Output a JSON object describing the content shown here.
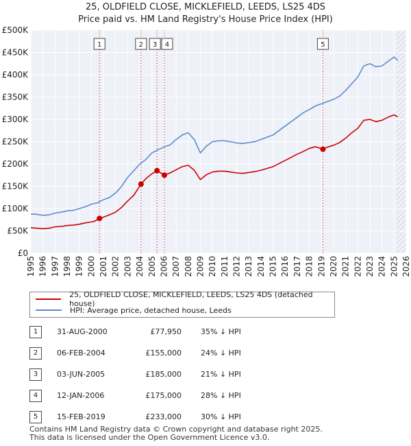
{
  "title_line1": "25, OLDFIELD CLOSE, MICKLEFIELD, LEEDS, LS25 4DS",
  "title_line2": "Price paid vs. HM Land Registry's House Price Index (HPI)",
  "colors": {
    "red": "#cc0000",
    "blue": "#5b8ccc",
    "grid": "#d0d7e4",
    "plot_bg": "#eef1f7",
    "future_hatch": "#bbbbbb"
  },
  "legend": {
    "property": "25, OLDFIELD CLOSE, MICKLEFIELD, LEEDS, LS25 4DS (detached house)",
    "hpi": "HPI: Average price, detached house, Leeds"
  },
  "sales": [
    {
      "num": "1",
      "date": "31-AUG-2000",
      "price": "£77,950",
      "hpi": "35% ↓ HPI"
    },
    {
      "num": "2",
      "date": "06-FEB-2004",
      "price": "£155,000",
      "hpi": "24% ↓ HPI"
    },
    {
      "num": "3",
      "date": "03-JUN-2005",
      "price": "£185,000",
      "hpi": "21% ↓ HPI"
    },
    {
      "num": "4",
      "date": "12-JAN-2006",
      "price": "£175,000",
      "hpi": "28% ↓ HPI"
    },
    {
      "num": "5",
      "date": "15-FEB-2019",
      "price": "£233,000",
      "hpi": "30% ↓ HPI"
    }
  ],
  "footer_line1": "Contains HM Land Registry data © Crown copyright and database right 2025.",
  "footer_line2": "This data is licensed under the Open Government Licence v3.0.",
  "chart_data": {
    "type": "line",
    "title": "25, OLDFIELD CLOSE, MICKLEFIELD, LEEDS, LS25 4DS — Price paid vs. HM Land Registry's House Price Index (HPI)",
    "xlabel": "",
    "ylabel": "",
    "xlim": [
      1995,
      2026
    ],
    "ylim": [
      0,
      500000
    ],
    "y_ticks": [
      0,
      50000,
      100000,
      150000,
      200000,
      250000,
      300000,
      350000,
      400000,
      450000,
      500000
    ],
    "y_tick_labels": [
      "£0",
      "£50K",
      "£100K",
      "£150K",
      "£200K",
      "£250K",
      "£300K",
      "£350K",
      "£400K",
      "£450K",
      "£500K"
    ],
    "x_ticks": [
      1995,
      1996,
      1997,
      1998,
      1999,
      2000,
      2001,
      2002,
      2003,
      2004,
      2005,
      2006,
      2007,
      2008,
      2009,
      2010,
      2011,
      2012,
      2013,
      2014,
      2015,
      2016,
      2017,
      2018,
      2019,
      2020,
      2021,
      2022,
      2023,
      2024,
      2025,
      2026
    ],
    "grid": true,
    "future_hatch_from": 2025.2,
    "series": [
      {
        "name": "HPI: Average price, detached house, Leeds",
        "color": "#5b8ccc",
        "x": [
          1995,
          1995.5,
          1996,
          1996.5,
          1997,
          1997.5,
          1998,
          1998.5,
          1999,
          1999.5,
          2000,
          2000.5,
          2001,
          2001.5,
          2002,
          2002.5,
          2003,
          2003.5,
          2004,
          2004.5,
          2005,
          2005.5,
          2006,
          2006.5,
          2007,
          2007.5,
          2008,
          2008.5,
          2009,
          2009.5,
          2010,
          2010.5,
          2011,
          2011.5,
          2012,
          2012.5,
          2013,
          2013.5,
          2014,
          2014.5,
          2015,
          2015.5,
          2016,
          2016.5,
          2017,
          2017.5,
          2018,
          2018.5,
          2019,
          2019.5,
          2020,
          2020.5,
          2021,
          2021.5,
          2022,
          2022.5,
          2023,
          2023.5,
          2024,
          2024.5,
          2025,
          2025.3
        ],
        "values": [
          88000,
          87000,
          85000,
          86000,
          90000,
          92000,
          95000,
          96000,
          100000,
          104000,
          110000,
          113000,
          120000,
          125000,
          135000,
          150000,
          170000,
          185000,
          200000,
          210000,
          225000,
          232000,
          238000,
          243000,
          255000,
          265000,
          270000,
          255000,
          225000,
          240000,
          250000,
          252000,
          252000,
          250000,
          247000,
          246000,
          248000,
          250000,
          255000,
          260000,
          265000,
          275000,
          285000,
          295000,
          305000,
          315000,
          322000,
          330000,
          335000,
          340000,
          345000,
          352000,
          365000,
          380000,
          395000,
          420000,
          425000,
          418000,
          420000,
          430000,
          440000,
          432000
        ]
      },
      {
        "name": "25, OLDFIELD CLOSE, MICKLEFIELD, LEEDS, LS25 4DS (detached house)",
        "color": "#cc0000",
        "x": [
          1995,
          1995.5,
          1996,
          1996.5,
          1997,
          1997.5,
          1998,
          1998.5,
          1999,
          1999.5,
          2000,
          2000.3,
          2000.67,
          2001,
          2001.5,
          2002,
          2002.5,
          2003,
          2003.5,
          2004.1,
          2004.5,
          2005,
          2005.42,
          2005.6,
          2006.03,
          2006.5,
          2007,
          2007.5,
          2008,
          2008.5,
          2009,
          2009.5,
          2010,
          2010.5,
          2011,
          2011.5,
          2012,
          2012.5,
          2013,
          2013.5,
          2014,
          2014.5,
          2015,
          2015.5,
          2016,
          2016.5,
          2017,
          2017.5,
          2018,
          2018.5,
          2019.12,
          2019.5,
          2020,
          2020.5,
          2021,
          2021.5,
          2022,
          2022.5,
          2023,
          2023.5,
          2024,
          2024.5,
          2025,
          2025.3
        ],
        "values": [
          57000,
          56000,
          55000,
          56000,
          59000,
          60000,
          62000,
          63000,
          65000,
          68000,
          70000,
          72000,
          77950,
          81000,
          86000,
          92000,
          103000,
          117000,
          130000,
          155000,
          167000,
          178000,
          185000,
          182000,
          175000,
          180000,
          187000,
          194000,
          197000,
          186000,
          165000,
          176000,
          182000,
          184000,
          184000,
          182000,
          180000,
          179000,
          181000,
          183000,
          186000,
          190000,
          194000,
          201000,
          208000,
          215000,
          222000,
          228000,
          235000,
          239000,
          233000,
          238000,
          242000,
          248000,
          258000,
          270000,
          280000,
          298000,
          300000,
          295000,
          298000,
          305000,
          310000,
          306000
        ]
      }
    ],
    "sales_markers": [
      {
        "label": "1",
        "x": 2000.67,
        "y": 77950
      },
      {
        "label": "2",
        "x": 2004.1,
        "y": 155000
      },
      {
        "label": "3",
        "x": 2005.42,
        "y": 185000
      },
      {
        "label": "4",
        "x": 2006.03,
        "y": 175000
      },
      {
        "label": "5",
        "x": 2019.12,
        "y": 233000
      }
    ]
  }
}
